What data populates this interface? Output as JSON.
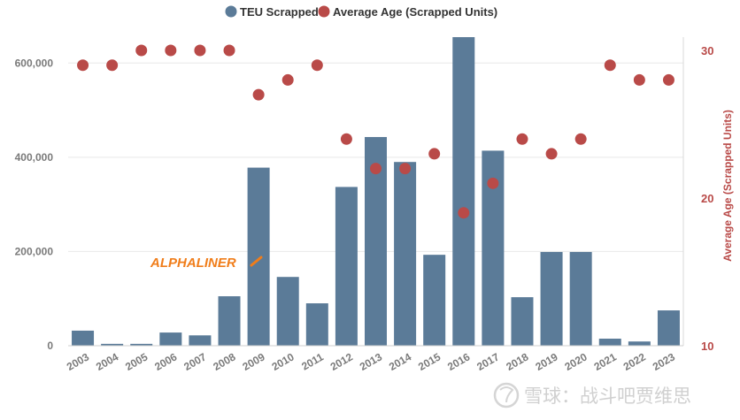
{
  "chart_data": {
    "type": "bar",
    "categories": [
      "2003",
      "2004",
      "2005",
      "2006",
      "2007",
      "2008",
      "2009",
      "2010",
      "2011",
      "2012",
      "2013",
      "2014",
      "2015",
      "2016",
      "2017",
      "2018",
      "2019",
      "2020",
      "2021",
      "2022",
      "2023"
    ],
    "series": [
      {
        "name": "TEU Scrapped",
        "type": "bar",
        "axis": "left",
        "color": "#5b7b98",
        "values": [
          32000,
          4000,
          4000,
          28000,
          22000,
          105000,
          378000,
          146000,
          90000,
          337000,
          443000,
          390000,
          193000,
          655000,
          414000,
          103000,
          199000,
          199000,
          15000,
          9000,
          75000
        ]
      },
      {
        "name": "Average Age (Scrapped Units)",
        "type": "scatter",
        "axis": "right",
        "color": "#b94a48",
        "values": [
          29,
          29,
          30,
          30,
          30,
          30,
          27,
          28,
          29,
          24,
          22,
          22,
          23,
          19,
          21,
          24,
          23,
          24,
          29,
          28,
          28
        ]
      }
    ],
    "yleft": {
      "ylim": [
        0,
        655000
      ],
      "ticks": [
        0,
        200000,
        400000,
        600000
      ],
      "tick_labels": [
        "0",
        "200,000",
        "400,000",
        "600,000"
      ]
    },
    "yright": {
      "label": "Average Age (Scrapped Units)",
      "ylim": [
        10,
        30.9
      ],
      "ticks": [
        10,
        20,
        30
      ],
      "tick_labels": [
        "10",
        "20",
        "30"
      ],
      "color": "#b94a48"
    },
    "legend_position": "top-center",
    "gridlines": true
  },
  "brand": "ALPHALINER",
  "brand_color": "#f07d1a",
  "watermark": "雪球：战斗吧贾维思"
}
